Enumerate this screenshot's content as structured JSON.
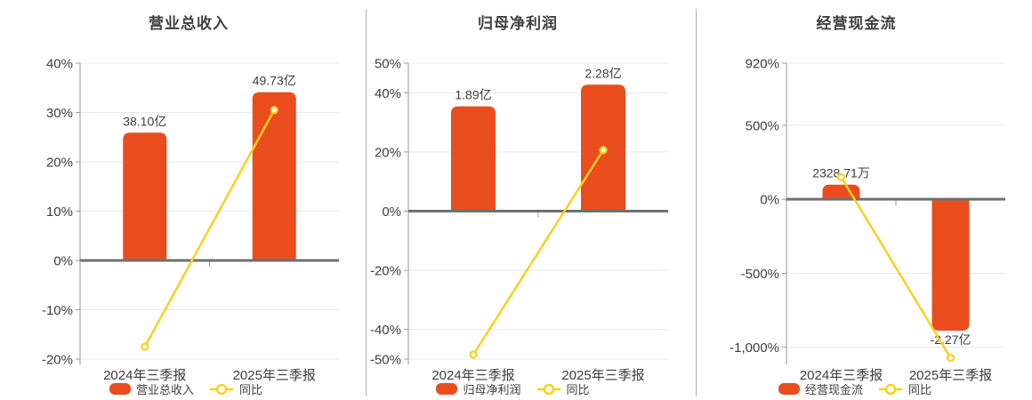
{
  "colors": {
    "bar": "#ea4d1d",
    "line": "#fbd01e",
    "grid": "#e3e9f3",
    "zero_line": "#6f6f6f",
    "axis_line": "#999999",
    "text": "#3d3d3d",
    "divider": "#b0b0b0",
    "background": "#ffffff"
  },
  "chart_data": [
    {
      "type": "bar+line",
      "title": "营业总收入",
      "categories": [
        "2024年三季报",
        "2025年三季报"
      ],
      "bar_series": {
        "name": "营业总收入",
        "value_labels": [
          "38.10亿",
          "49.73亿"
        ],
        "display_pct": [
          25.9,
          34.1
        ]
      },
      "line_series": {
        "name": "同比",
        "values_pct": [
          -17.5,
          30.5
        ]
      },
      "y_axis": {
        "min": -20,
        "max": 40,
        "unit": "%",
        "ticks": [
          {
            "v": 40,
            "label": "40%"
          },
          {
            "v": 30,
            "label": "30%"
          },
          {
            "v": 20,
            "label": "20%"
          },
          {
            "v": 10,
            "label": "10%"
          },
          {
            "v": 0,
            "label": "0%"
          },
          {
            "v": -10,
            "label": "-10%"
          },
          {
            "v": -20,
            "label": "-20%"
          }
        ]
      },
      "grid": true,
      "legend_position": "bottom"
    },
    {
      "type": "bar+line",
      "title": "归母净利润",
      "categories": [
        "2024年三季报",
        "2025年三季报"
      ],
      "bar_series": {
        "name": "归母净利润",
        "value_labels": [
          "1.89亿",
          "2.28亿"
        ],
        "display_pct": [
          35.4,
          42.7
        ]
      },
      "line_series": {
        "name": "同比",
        "values_pct": [
          -48.5,
          20.6
        ]
      },
      "y_axis": {
        "min": -50,
        "max": 50,
        "unit": "%",
        "ticks": [
          {
            "v": 50,
            "label": "50%"
          },
          {
            "v": 40,
            "label": "40%"
          },
          {
            "v": 20,
            "label": "20%"
          },
          {
            "v": 0,
            "label": "0%"
          },
          {
            "v": -20,
            "label": "-20%"
          },
          {
            "v": -40,
            "label": "-40%"
          },
          {
            "v": -50,
            "label": "-50%"
          }
        ]
      },
      "grid": true,
      "legend_position": "bottom"
    },
    {
      "type": "bar+line",
      "title": "经营现金流",
      "categories": [
        "2024年三季报",
        "2025年三季报"
      ],
      "bar_series": {
        "name": "经营现金流",
        "value_labels": [
          "2328.71万",
          "-2.27亿"
        ],
        "display_pct": [
          99,
          -888
        ]
      },
      "line_series": {
        "name": "同比",
        "values_pct": [
          149,
          -1072
        ]
      },
      "y_axis": {
        "min": -1080,
        "max": 920,
        "unit": "%",
        "ticks": [
          {
            "v": 920,
            "label": "920%"
          },
          {
            "v": 500,
            "label": "500%"
          },
          {
            "v": 0,
            "label": "0%"
          },
          {
            "v": -500,
            "label": "-500%"
          },
          {
            "v": -1000,
            "label": "-1,000%"
          }
        ]
      },
      "grid": true,
      "legend_position": "bottom"
    }
  ]
}
